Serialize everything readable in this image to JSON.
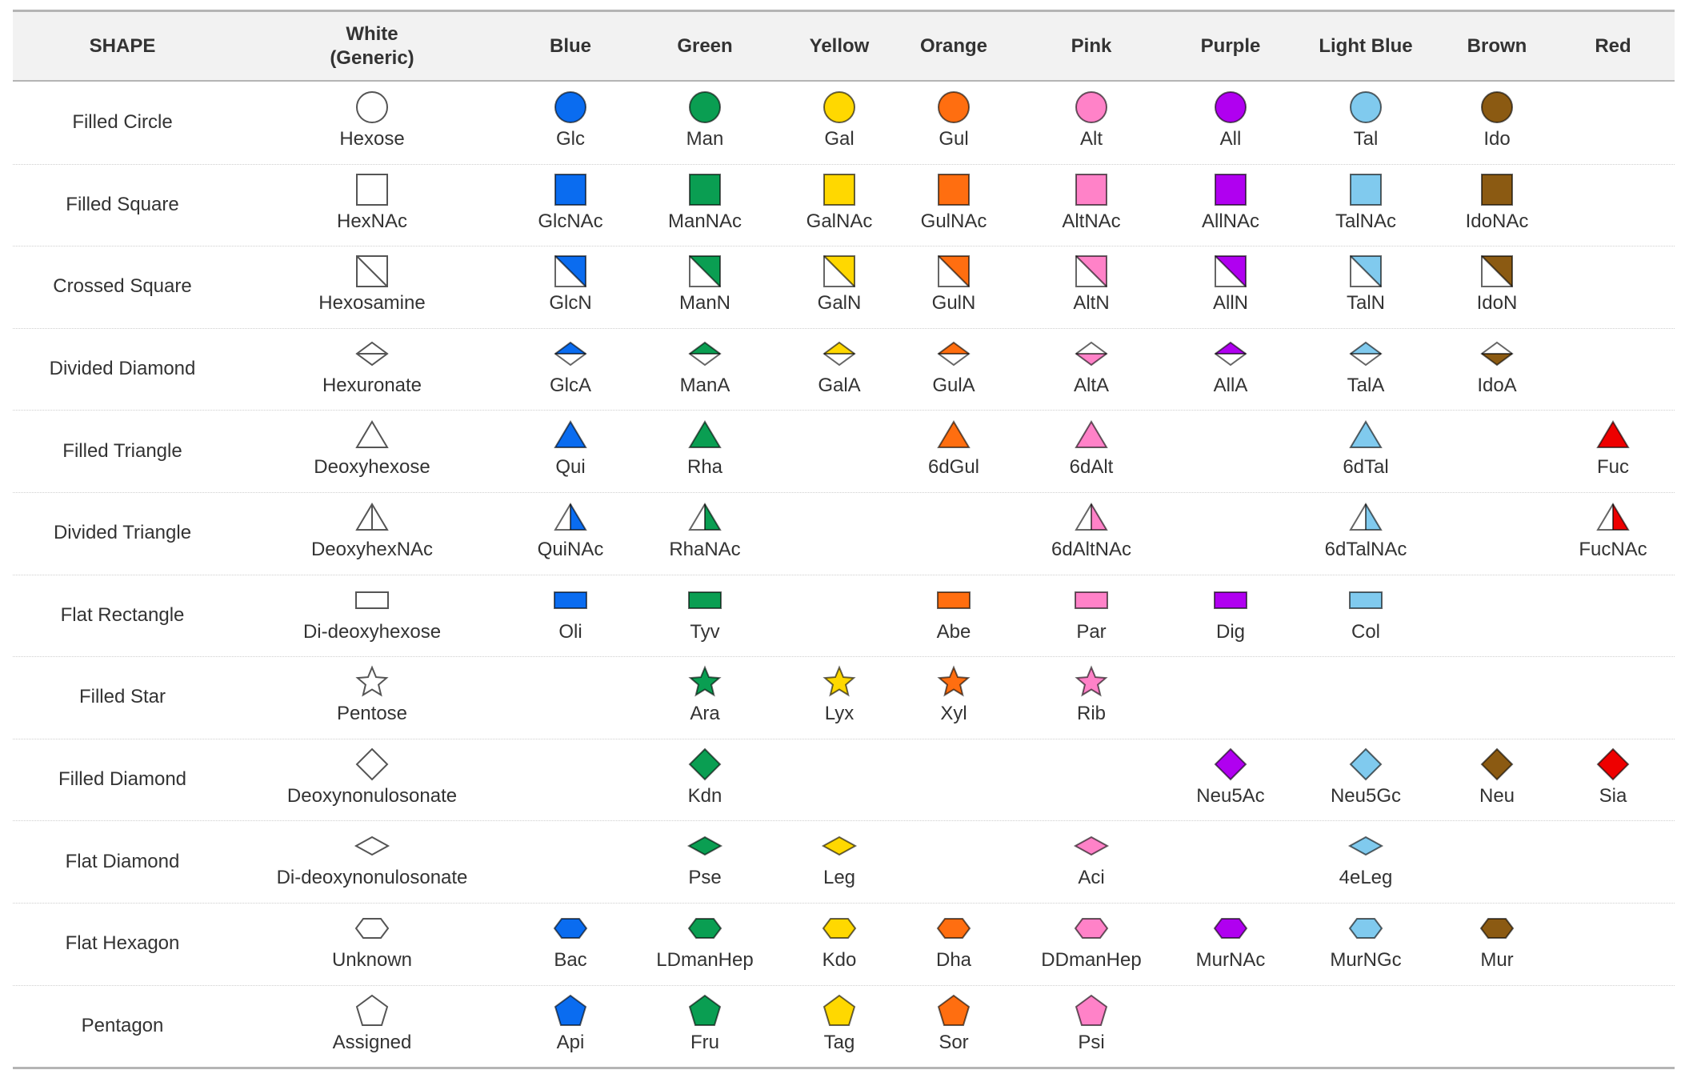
{
  "header": {
    "shape": "SHAPE",
    "columns": [
      "White\n(Generic)",
      "Blue",
      "Green",
      "Yellow",
      "Orange",
      "Pink",
      "Purple",
      "Light Blue",
      "Brown",
      "Red"
    ]
  },
  "colors": [
    "#ffffff",
    "#0a6cf0",
    "#0a9e52",
    "#ffd800",
    "#ff6e10",
    "#ff82c8",
    "#b000f0",
    "#80caee",
    "#8b5a12",
    "#ee0000"
  ],
  "rows": [
    {
      "shape": "Filled Circle",
      "symbol": "circle",
      "cells": [
        "Hexose",
        "Glc",
        "Man",
        "Gal",
        "Gul",
        "Alt",
        "All",
        "Tal",
        "Ido",
        ""
      ]
    },
    {
      "shape": "Filled Square",
      "symbol": "square",
      "cells": [
        "HexNAc",
        "GlcNAc",
        "ManNAc",
        "GalNAc",
        "GulNAc",
        "AltNAc",
        "AllNAc",
        "TalNAc",
        "IdoNAc",
        ""
      ]
    },
    {
      "shape": "Crossed Square",
      "symbol": "crossed-square",
      "cells": [
        "Hexosamine",
        "GlcN",
        "ManN",
        "GalN",
        "GulN",
        "AltN",
        "AllN",
        "TalN",
        "IdoN",
        ""
      ]
    },
    {
      "shape": "Divided Diamond",
      "symbol": "divided-diamond",
      "inverted": [
        "AltA",
        "IdoA"
      ],
      "cells": [
        "Hexuronate",
        "GlcA",
        "ManA",
        "GalA",
        "GulA",
        "AltA",
        "AllA",
        "TalA",
        "IdoA",
        ""
      ]
    },
    {
      "shape": "Filled Triangle",
      "symbol": "triangle",
      "cells": [
        "Deoxyhexose",
        "Qui",
        "Rha",
        "",
        "6dGul",
        "6dAlt",
        "",
        "6dTal",
        "",
        "Fuc"
      ]
    },
    {
      "shape": "Divided Triangle",
      "symbol": "divided-triangle",
      "cells": [
        "DeoxyhexNAc",
        "QuiNAc",
        "RhaNAc",
        "",
        "",
        "6dAltNAc",
        "",
        "6dTalNAc",
        "",
        "FucNAc"
      ]
    },
    {
      "shape": "Flat Rectangle",
      "symbol": "flat-rectangle",
      "cells": [
        "Di-deoxyhexose",
        "Oli",
        "Tyv",
        "",
        "Abe",
        "Par",
        "Dig",
        "Col",
        "",
        ""
      ]
    },
    {
      "shape": "Filled Star",
      "symbol": "star",
      "cells": [
        "Pentose",
        "",
        "Ara",
        "Lyx",
        "Xyl",
        "Rib",
        "",
        "",
        "",
        ""
      ]
    },
    {
      "shape": "Filled Diamond",
      "symbol": "diamond",
      "cells": [
        "Deoxynonulosonate",
        "",
        "Kdn",
        "",
        "",
        "",
        "Neu5Ac",
        "Neu5Gc",
        "Neu",
        "Sia"
      ]
    },
    {
      "shape": "Flat Diamond",
      "symbol": "flat-diamond",
      "cells": [
        "Di-deoxynonulosonate",
        "",
        "Pse",
        "Leg",
        "",
        "Aci",
        "",
        "4eLeg",
        "",
        ""
      ]
    },
    {
      "shape": "Flat Hexagon",
      "symbol": "flat-hexagon",
      "cells": [
        "Unknown",
        "Bac",
        "LDmanHep",
        "Kdo",
        "Dha",
        "DDmanHep",
        "MurNAc",
        "MurNGc",
        "Mur",
        ""
      ]
    },
    {
      "shape": "Pentagon",
      "symbol": "pentagon",
      "cells": [
        "Assigned",
        "Api",
        "Fru",
        "Tag",
        "Sor",
        "Psi",
        "",
        "",
        "",
        ""
      ]
    }
  ]
}
